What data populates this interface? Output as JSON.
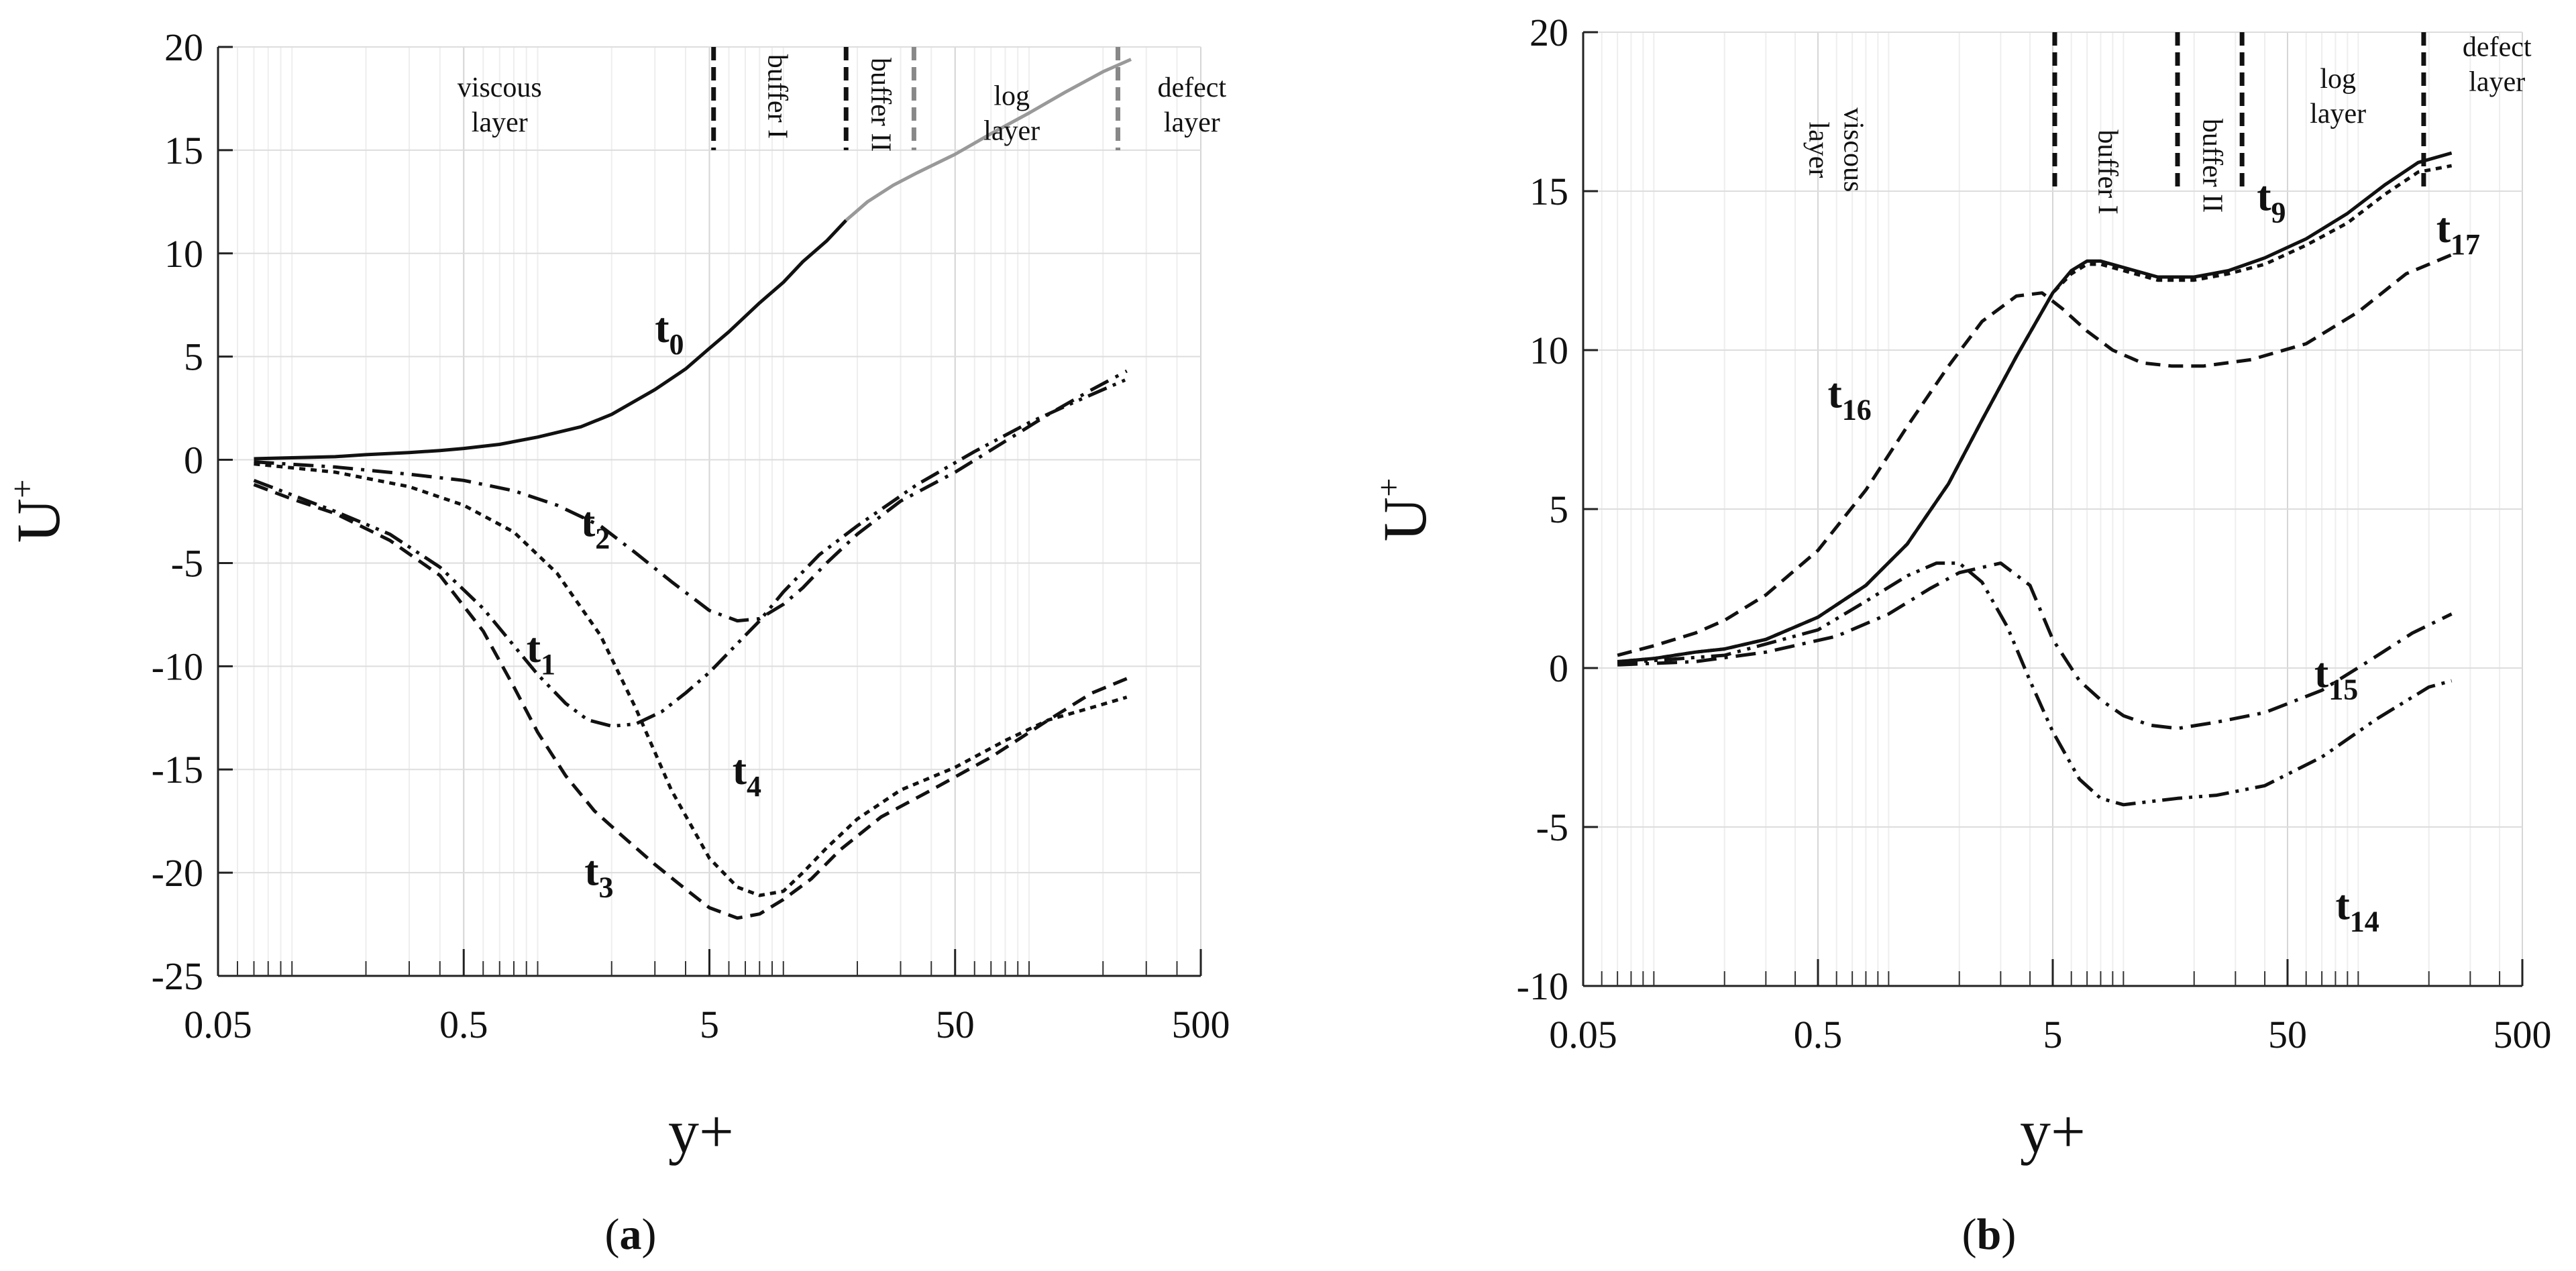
{
  "chart_data": [
    {
      "panel_label": "(a)",
      "panel_letter": "a",
      "type": "line",
      "xscale": "log",
      "xlim": [
        0.05,
        500
      ],
      "ylim": [
        -25,
        20
      ],
      "xticks": [
        "0.05",
        "0.5",
        "5",
        "50",
        "500"
      ],
      "yticks": [
        "20",
        "15",
        "10",
        "5",
        "0",
        "-5",
        "-10",
        "-15",
        "-20",
        "-25"
      ],
      "xlabel": "y+",
      "ylabel": "U",
      "ylabel_sup": "+",
      "grid": true,
      "dividers": [
        {
          "x": 5.2,
          "y_range": [
            15,
            20
          ],
          "color": "#111111"
        },
        {
          "x": 18,
          "y_range": [
            15,
            20
          ],
          "color": "#111111"
        },
        {
          "x": 34,
          "y_range": [
            15,
            20
          ],
          "color": "#888888"
        },
        {
          "x": 230,
          "y_range": [
            15,
            20
          ],
          "color": "#111111"
        },
        {
          "x": 230,
          "y_range": [
            15,
            20
          ],
          "color": "#888888"
        }
      ],
      "regions": [
        {
          "lines": [
            "viscous",
            "layer"
          ],
          "x": 0.7,
          "y": 17.2,
          "rotate": false
        },
        {
          "lines": [
            "buffer I"
          ],
          "x": 9.5,
          "y": 17.6,
          "rotate": true
        },
        {
          "lines": [
            "buffer II"
          ],
          "x": 25,
          "y": 17.2,
          "rotate": true
        },
        {
          "lines": [
            "log",
            "layer"
          ],
          "x": 85,
          "y": 16.8,
          "rotate": false
        },
        {
          "lines": [
            "defect",
            "layer"
          ],
          "x": 460,
          "y": 17.2,
          "rotate": false
        }
      ],
      "series": [
        {
          "name": "t0",
          "label_main": "t",
          "label_sub": "0",
          "label_at": [
            3.0,
            5.7
          ],
          "dash": "solid",
          "x": [
            0.07,
            0.1,
            0.15,
            0.2,
            0.3,
            0.4,
            0.5,
            0.7,
            1.0,
            1.5,
            2.0,
            3.0,
            4.0,
            5.0,
            6.0,
            8.0,
            10,
            12,
            15,
            18
          ],
          "y": [
            0.05,
            0.1,
            0.15,
            0.25,
            0.35,
            0.45,
            0.55,
            0.75,
            1.1,
            1.6,
            2.2,
            3.4,
            4.4,
            5.4,
            6.2,
            7.6,
            8.6,
            9.6,
            10.6,
            11.6
          ]
        },
        {
          "name": "t0-log",
          "dash": "solid",
          "color": "#999999",
          "x": [
            18,
            22,
            28,
            35,
            50,
            70,
            100,
            140,
            200,
            260
          ],
          "y": [
            11.6,
            12.5,
            13.3,
            13.9,
            14.8,
            15.8,
            16.8,
            17.8,
            18.8,
            19.4
          ]
        },
        {
          "name": "t2",
          "label_main": "t",
          "label_sub": "2",
          "label_at": [
            1.5,
            -3.7
          ],
          "dash": "dashdot",
          "x": [
            0.07,
            0.15,
            0.3,
            0.5,
            0.8,
            1.2,
            1.8,
            2.5,
            3.5,
            5,
            6.5,
            8,
            10,
            12,
            15,
            20,
            30,
            50,
            80,
            120,
            180,
            250
          ],
          "y": [
            -0.1,
            -0.35,
            -0.7,
            -1.0,
            -1.5,
            -2.2,
            -3.2,
            -4.5,
            -5.9,
            -7.3,
            -7.8,
            -7.7,
            -7.0,
            -6.2,
            -5.0,
            -3.6,
            -2.0,
            -0.6,
            0.9,
            2.2,
            3.4,
            4.3
          ]
        },
        {
          "name": "t1",
          "label_main": "t",
          "label_sub": "1",
          "label_at": [
            0.9,
            -9.8
          ],
          "dash": "dashdotdot",
          "x": [
            0.07,
            0.1,
            0.15,
            0.25,
            0.4,
            0.6,
            0.8,
            1.0,
            1.3,
            1.6,
            2.0,
            2.5,
            3.2,
            4.0,
            5.0,
            6.5,
            8,
            10,
            14,
            20,
            35,
            60,
            100,
            160,
            250
          ],
          "y": [
            -1.0,
            -1.7,
            -2.5,
            -3.6,
            -5.2,
            -7.2,
            -9.0,
            -10.4,
            -11.8,
            -12.6,
            -12.9,
            -12.8,
            -12.2,
            -11.3,
            -10.3,
            -8.9,
            -7.8,
            -6.4,
            -4.6,
            -3.2,
            -1.2,
            0.4,
            1.8,
            2.9,
            3.9
          ]
        },
        {
          "name": "t4",
          "label_main": "t",
          "label_sub": "4",
          "label_at": [
            6.2,
            -15.7
          ],
          "dash": "dotted",
          "x": [
            0.07,
            0.15,
            0.3,
            0.5,
            0.8,
            1.2,
            1.8,
            2.5,
            3.5,
            5,
            6.5,
            8,
            10,
            12,
            15,
            20,
            30,
            50,
            80,
            120,
            180,
            250
          ],
          "y": [
            -0.2,
            -0.6,
            -1.3,
            -2.2,
            -3.5,
            -5.5,
            -8.5,
            -12.0,
            -16.0,
            -19.3,
            -20.7,
            -21.1,
            -20.9,
            -20.0,
            -18.8,
            -17.4,
            -16.0,
            -14.9,
            -13.6,
            -12.6,
            -12.0,
            -11.5
          ]
        },
        {
          "name": "t3",
          "label_main": "t",
          "label_sub": "3",
          "label_at": [
            1.55,
            -20.6
          ],
          "dash": "dashed",
          "x": [
            0.07,
            0.1,
            0.15,
            0.25,
            0.4,
            0.6,
            0.8,
            1.0,
            1.3,
            1.7,
            2.2,
            3,
            4,
            5,
            6.5,
            8,
            10,
            13,
            17,
            25,
            40,
            70,
            120,
            180,
            250
          ],
          "y": [
            -1.2,
            -1.9,
            -2.6,
            -3.9,
            -5.6,
            -8.3,
            -11.0,
            -13.2,
            -15.3,
            -17.0,
            -18.2,
            -19.6,
            -20.8,
            -21.7,
            -22.2,
            -22.0,
            -21.3,
            -20.3,
            -18.9,
            -17.3,
            -16.0,
            -14.4,
            -12.6,
            -11.3,
            -10.6
          ]
        }
      ]
    },
    {
      "panel_label": "(b)",
      "panel_letter": "b",
      "type": "line",
      "xscale": "log",
      "xlim": [
        0.05,
        500
      ],
      "ylim": [
        -10,
        20
      ],
      "xticks": [
        "0.05",
        "0.5",
        "5",
        "50",
        "500"
      ],
      "yticks": [
        "20",
        "15",
        "10",
        "5",
        "0",
        "-5",
        "-10"
      ],
      "xlabel": "y+",
      "ylabel": "U",
      "ylabel_sup": "+",
      "grid": true,
      "dividers": [
        {
          "x": 5.1,
          "y_range": [
            15,
            20
          ],
          "color": "#111111"
        },
        {
          "x": 17,
          "y_range": [
            15,
            20
          ],
          "color": "#111111"
        },
        {
          "x": 32,
          "y_range": [
            15,
            20
          ],
          "color": "#111111"
        },
        {
          "x": 190,
          "y_range": [
            15,
            20
          ],
          "color": "#111111"
        }
      ],
      "regions": [
        {
          "lines": [
            "viscous",
            "layer"
          ],
          "x": 0.6,
          "y": 16.3,
          "rotate": true
        },
        {
          "lines": [
            "buffer I"
          ],
          "x": 8.6,
          "y": 15.6,
          "rotate": true
        },
        {
          "lines": [
            "buffer II"
          ],
          "x": 24,
          "y": 15.8,
          "rotate": true
        },
        {
          "lines": [
            "log",
            "layer"
          ],
          "x": 82,
          "y": 18.0,
          "rotate": false
        },
        {
          "lines": [
            "defect",
            "layer"
          ],
          "x": 390,
          "y": 19.0,
          "rotate": false
        }
      ],
      "series": [
        {
          "name": "t9",
          "label_main": "t",
          "label_sub": "9",
          "label_at": [
            37,
            14.4
          ],
          "dash": "solid",
          "x": [
            0.07,
            0.1,
            0.15,
            0.2,
            0.3,
            0.5,
            0.8,
            1.2,
            1.8,
            2.5,
            3.5,
            5,
            6,
            7,
            8,
            10,
            14,
            20,
            28,
            40,
            60,
            90,
            130,
            180,
            250
          ],
          "y": [
            0.2,
            0.3,
            0.5,
            0.6,
            0.9,
            1.6,
            2.6,
            3.9,
            5.8,
            7.8,
            9.8,
            11.8,
            12.5,
            12.8,
            12.8,
            12.6,
            12.3,
            12.3,
            12.5,
            12.9,
            13.5,
            14.3,
            15.2,
            15.9,
            16.2
          ]
        },
        {
          "name": "t17",
          "label_main": "t",
          "label_sub": "17",
          "label_at": [
            215,
            13.4
          ],
          "dash": "dotted",
          "x": [
            0.07,
            0.1,
            0.15,
            0.2,
            0.3,
            0.5,
            0.8,
            1.2,
            1.8,
            2.5,
            3.5,
            5,
            6,
            7,
            8,
            10,
            14,
            20,
            28,
            40,
            60,
            90,
            130,
            180,
            250
          ],
          "y": [
            0.2,
            0.3,
            0.5,
            0.6,
            0.9,
            1.6,
            2.6,
            3.9,
            5.8,
            7.8,
            9.8,
            11.8,
            12.4,
            12.7,
            12.7,
            12.5,
            12.2,
            12.2,
            12.4,
            12.7,
            13.3,
            14.0,
            14.9,
            15.6,
            15.8
          ]
        },
        {
          "name": "t16",
          "label_main": "t",
          "label_sub": "16",
          "label_at": [
            0.55,
            8.2
          ],
          "dash": "dashed",
          "x": [
            0.07,
            0.1,
            0.15,
            0.2,
            0.3,
            0.5,
            0.8,
            1.2,
            1.8,
            2.5,
            3.5,
            4.5,
            5.5,
            7,
            9,
            12,
            16,
            22,
            35,
            60,
            100,
            160,
            250
          ],
          "y": [
            0.4,
            0.7,
            1.1,
            1.5,
            2.3,
            3.7,
            5.6,
            7.6,
            9.5,
            10.9,
            11.7,
            11.8,
            11.3,
            10.6,
            10.0,
            9.6,
            9.5,
            9.5,
            9.7,
            10.2,
            11.2,
            12.4,
            13.0
          ]
        },
        {
          "name": "t15",
          "label_main": "t",
          "label_sub": "15",
          "label_at": [
            65,
            -0.6
          ],
          "dash": "dashdot",
          "x": [
            0.07,
            0.15,
            0.3,
            0.6,
            1.0,
            1.5,
            2.0,
            3.0,
            4.0,
            5.0,
            6.5,
            8,
            10,
            13,
            17,
            25,
            40,
            70,
            110,
            170,
            250
          ],
          "y": [
            0.1,
            0.2,
            0.5,
            1.0,
            1.7,
            2.5,
            3.0,
            3.3,
            2.6,
            0.9,
            -0.4,
            -1.0,
            -1.5,
            -1.8,
            -1.9,
            -1.7,
            -1.4,
            -0.7,
            0.2,
            1.1,
            1.7
          ]
        },
        {
          "name": "t14",
          "label_main": "t",
          "label_sub": "14",
          "label_at": [
            80,
            -7.9
          ],
          "dash": "dashdotdot",
          "x": [
            0.07,
            0.2,
            0.5,
            0.8,
            1.2,
            1.6,
            2.0,
            2.5,
            3.2,
            4.0,
            5.0,
            6.5,
            8,
            10,
            13,
            17,
            25,
            40,
            70,
            120,
            200,
            250
          ],
          "y": [
            0.15,
            0.4,
            1.2,
            2.1,
            2.9,
            3.3,
            3.3,
            2.7,
            1.3,
            -0.4,
            -2.0,
            -3.5,
            -4.1,
            -4.3,
            -4.2,
            -4.1,
            -4.0,
            -3.7,
            -2.8,
            -1.6,
            -0.6,
            -0.4
          ]
        }
      ]
    }
  ]
}
